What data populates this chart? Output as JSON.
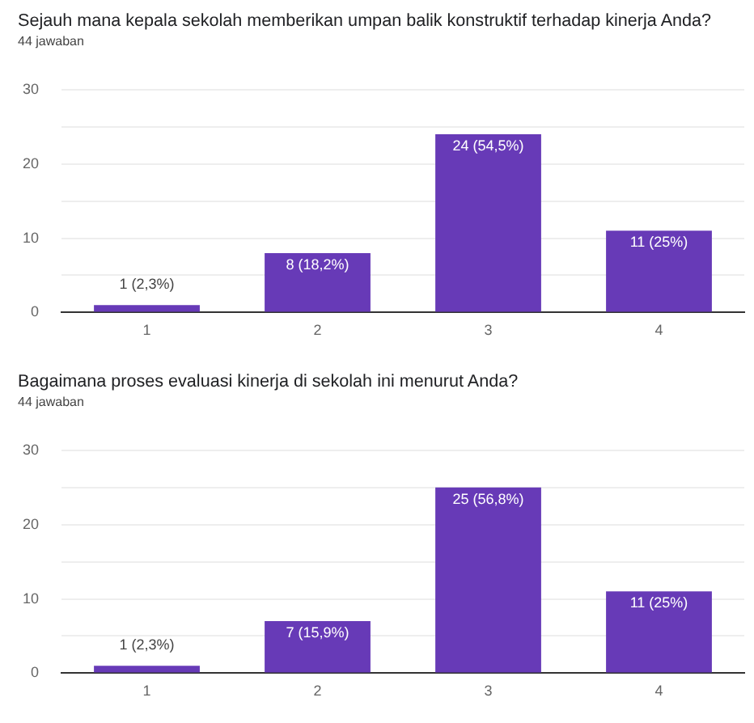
{
  "chart_data": [
    {
      "type": "bar",
      "title": "Sejauh mana kepala sekolah memberikan umpan balik konstruktif terhadap kinerja Anda?",
      "subtitle": "44 jawaban",
      "categories": [
        "1",
        "2",
        "3",
        "4"
      ],
      "values": [
        1,
        8,
        24,
        11
      ],
      "color": "#673ab7",
      "value_labels": [
        "1 (2,3%)",
        "8 (18,2%)",
        "24 (54,5%)",
        "11 (25%)"
      ],
      "ylim": [
        0,
        30
      ],
      "yticks": [
        0,
        {
          "value": 5,
          "label": null
        },
        10,
        {
          "value": 15,
          "label": null
        },
        20,
        {
          "value": 25,
          "label": null
        },
        30
      ],
      "grid": "y",
      "legend": false
    },
    {
      "type": "bar",
      "title": "Bagaimana proses evaluasi kinerja di sekolah ini menurut Anda?",
      "subtitle": "44 jawaban",
      "categories": [
        "1",
        "2",
        "3",
        "4"
      ],
      "values": [
        1,
        7,
        25,
        11
      ],
      "color": "#673ab7",
      "value_labels": [
        "1 (2,3%)",
        "7 (15,9%)",
        "25 (56,8%)",
        "11 (25%)"
      ],
      "ylim": [
        0,
        30
      ],
      "yticks": [
        0,
        {
          "value": 5,
          "label": null
        },
        10,
        {
          "value": 15,
          "label": null
        },
        20,
        {
          "value": 25,
          "label": null
        },
        30
      ],
      "grid": "y",
      "legend": false
    }
  ]
}
